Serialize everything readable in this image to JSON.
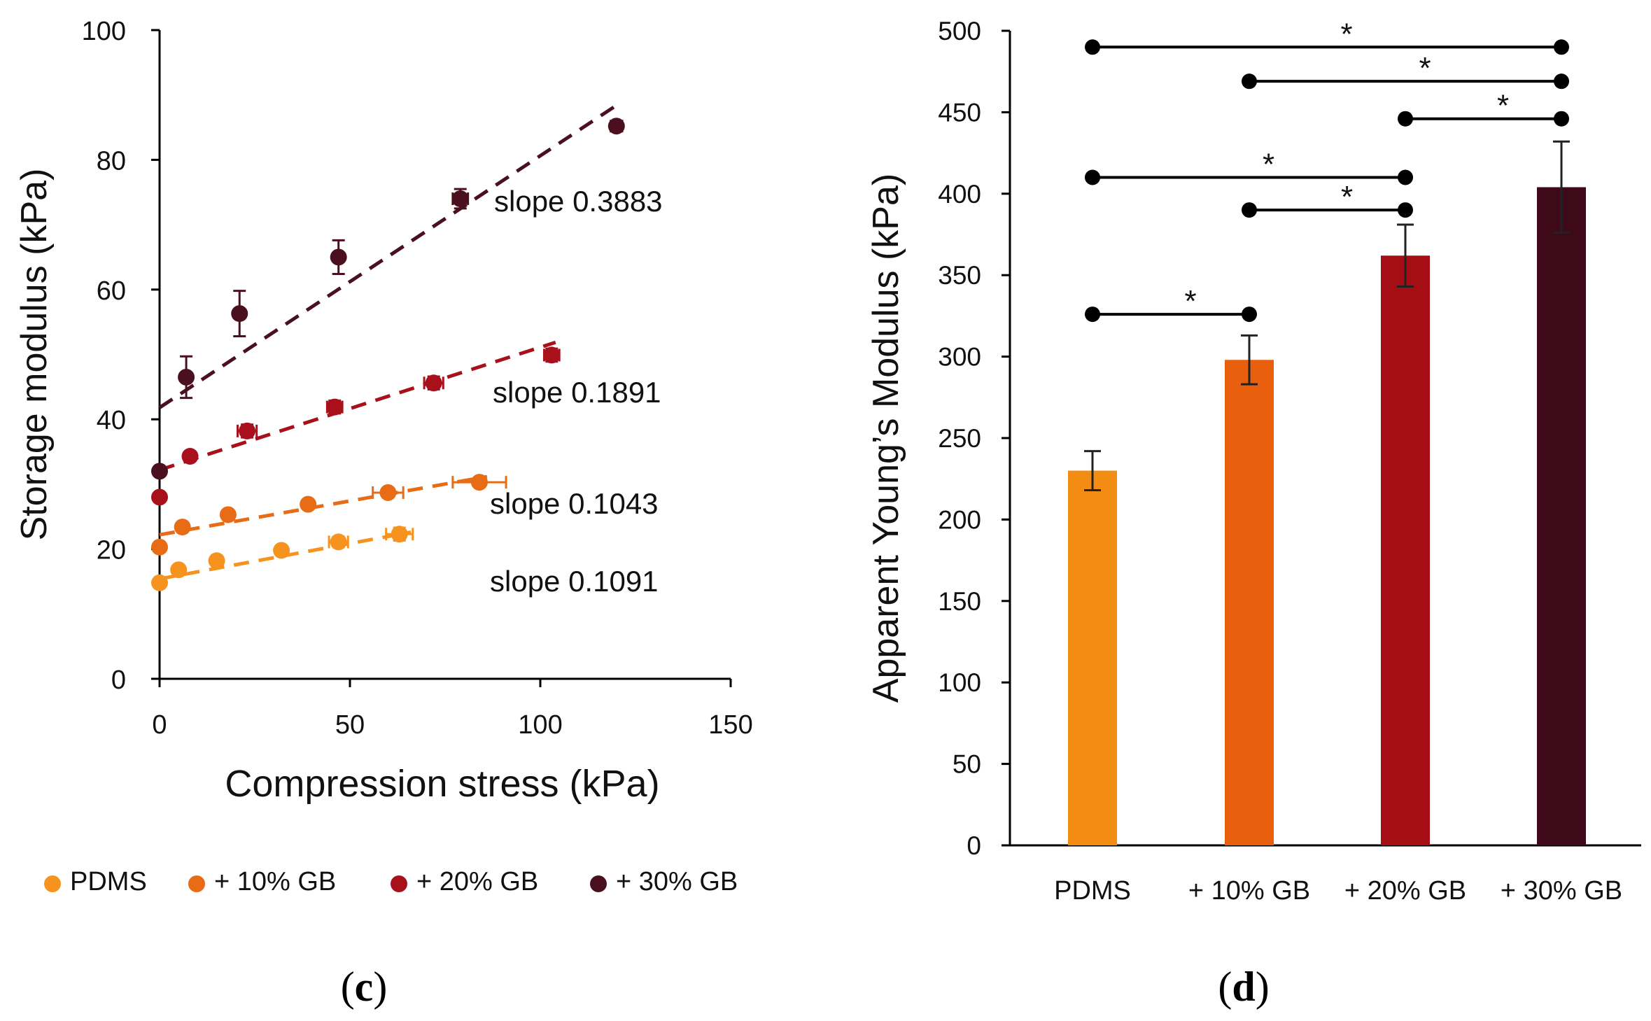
{
  "chart_data": [
    {
      "id": "c",
      "type": "scatter",
      "panel_label": "(c)",
      "panel_letter": "c",
      "xlabel": "Compression stress (kPa)",
      "ylabel": "Storage modulus (kPa)",
      "xlim": [
        0,
        150
      ],
      "ylim": [
        0,
        100
      ],
      "xticks": [
        0,
        50,
        100,
        150
      ],
      "yticks": [
        0,
        20,
        40,
        60,
        80,
        100
      ],
      "grid": false,
      "legend_position": "bottom",
      "series": [
        {
          "name": "PDMS",
          "color": "#F6931E",
          "x": [
            0,
            5,
            15,
            32,
            47,
            63
          ],
          "y": [
            14.8,
            16.8,
            18.2,
            19.8,
            21.1,
            22.3
          ],
          "xerr": [
            0,
            0,
            0,
            0,
            2.5,
            3.5
          ],
          "yerr": [
            0,
            0,
            0,
            0,
            0.8,
            1.0
          ],
          "fit": {
            "slope": 0.1091,
            "intercept": 15.4,
            "x_end": 66
          },
          "slope_label": "slope 0.1091"
        },
        {
          "name": "+ 10% GB",
          "color": "#E86B16",
          "x": [
            0,
            6,
            18,
            39,
            60,
            84
          ],
          "y": [
            20.3,
            23.4,
            25.3,
            26.9,
            28.7,
            30.3
          ],
          "xerr": [
            0,
            0,
            0,
            0,
            4,
            7
          ],
          "yerr": [
            0,
            0,
            0,
            0,
            0.6,
            0.6
          ],
          "fit": {
            "slope": 0.1043,
            "intercept": 22.2,
            "x_end": 86
          },
          "slope_label": "slope 0.1043"
        },
        {
          "name": "+ 20% GB",
          "color": "#A8111C",
          "x": [
            0,
            8,
            23,
            46,
            72,
            103
          ],
          "y": [
            28.0,
            34.3,
            38.2,
            41.9,
            45.6,
            49.9
          ],
          "xerr": [
            0,
            0,
            2.5,
            2,
            2.5,
            2
          ],
          "yerr": [
            0,
            0,
            1.0,
            1.0,
            1.0,
            1.0
          ],
          "fit": {
            "slope": 0.1891,
            "intercept": 32.2,
            "x_end": 104
          },
          "slope_label": "slope 0.1891"
        },
        {
          "name": "+ 30% GB",
          "color": "#4A1020",
          "x": [
            0,
            7,
            21,
            47,
            79,
            120
          ],
          "y": [
            32.0,
            46.5,
            56.3,
            65.0,
            74.0,
            85.2
          ],
          "xerr": [
            0,
            0,
            0,
            0,
            2,
            1.5
          ],
          "yerr": [
            0,
            3.2,
            3.5,
            2.6,
            1.5,
            0.6
          ],
          "fit": {
            "slope": 0.3883,
            "intercept": 41.8,
            "x_end": 121
          },
          "slope_label": "slope 0.3883"
        }
      ]
    },
    {
      "id": "d",
      "type": "bar",
      "panel_label": "(d)",
      "panel_letter": "d",
      "ylabel": "Apparent Young’s Modulus (kPa)",
      "xlabel": "",
      "ylim": [
        0,
        500
      ],
      "yticks": [
        0,
        50,
        100,
        150,
        200,
        250,
        300,
        350,
        400,
        450,
        500
      ],
      "grid": false,
      "categories": [
        "PDMS",
        "+ 10% GB",
        "+ 20% GB",
        "+ 30% GB"
      ],
      "values": [
        230,
        298,
        362,
        404
      ],
      "errors": [
        12,
        15,
        19,
        28
      ],
      "colors": [
        "#F28C12",
        "#E8600E",
        "#A50E14",
        "#3E0A1A"
      ],
      "significance": [
        {
          "from": 0,
          "to": 3,
          "level": 490,
          "label": "*"
        },
        {
          "from": 1,
          "to": 3,
          "level": 469,
          "label": "*"
        },
        {
          "from": 2,
          "to": 3,
          "level": 446,
          "label": "*"
        },
        {
          "from": 0,
          "to": 2,
          "level": 410,
          "label": "*"
        },
        {
          "from": 1,
          "to": 2,
          "level": 390,
          "label": "*"
        },
        {
          "from": 0,
          "to": 1,
          "level": 326,
          "label": "*"
        }
      ]
    }
  ]
}
